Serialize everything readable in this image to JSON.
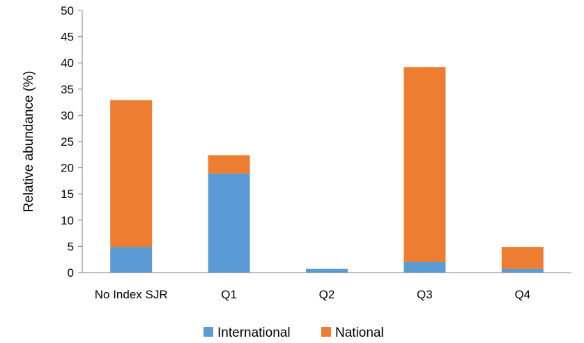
{
  "chart_data": {
    "type": "bar",
    "stacked": true,
    "categories": [
      "No Index SJR",
      "Q1",
      "Q2",
      "Q3",
      "Q4"
    ],
    "series": [
      {
        "name": "International",
        "color": "#5b9bd5",
        "values": [
          4.9,
          18.9,
          0.7,
          2.0,
          0.7
        ]
      },
      {
        "name": "National",
        "color": "#ed7d31",
        "values": [
          28.0,
          3.5,
          0.0,
          37.2,
          4.2
        ]
      }
    ],
    "title": "",
    "xlabel": "",
    "ylabel": "Relative abundance (%)",
    "ylim": [
      0,
      50
    ],
    "yticks": [
      0,
      5,
      10,
      15,
      20,
      25,
      30,
      35,
      40,
      45,
      50
    ],
    "grid": false,
    "legend": "bottom-center"
  }
}
